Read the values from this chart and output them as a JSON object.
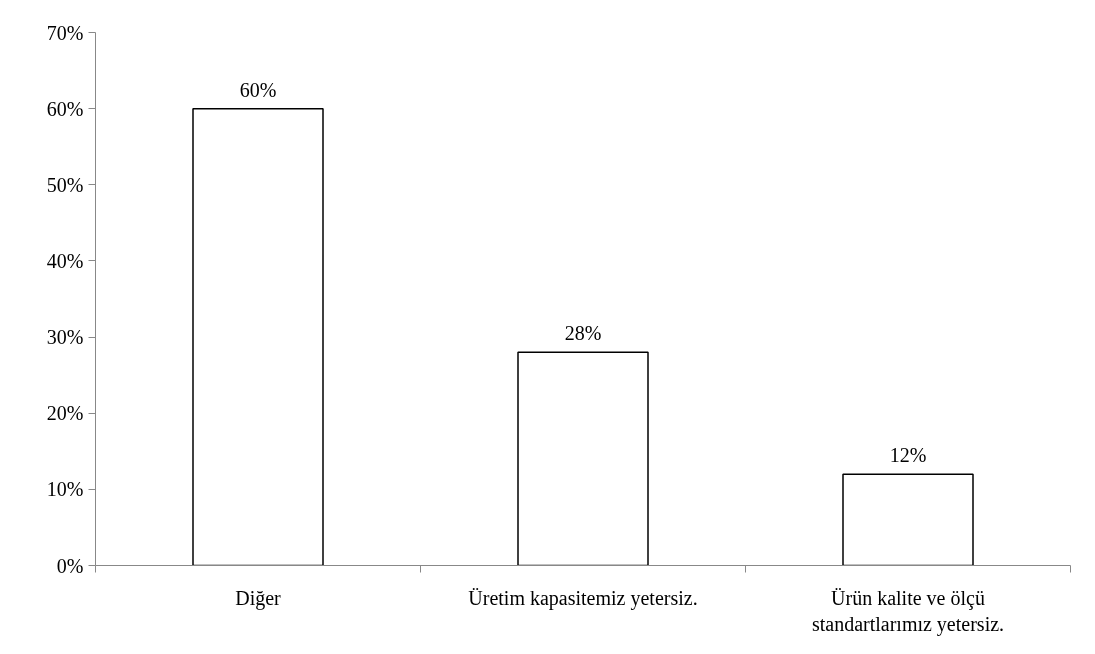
{
  "chart_data": {
    "type": "bar",
    "categories": [
      "Diğer",
      "Üretim kapasitemiz yetersiz.",
      "Ürün kalite ve ölçü\nstandartlarımız yetersiz."
    ],
    "values": [
      60,
      28,
      12
    ],
    "value_labels": [
      "60%",
      "28%",
      "12%"
    ],
    "color": "#ffffff",
    "ylim": [
      0,
      70
    ],
    "yticks": [
      {
        "value": 0,
        "label": "0%"
      },
      {
        "value": 10,
        "label": "10%"
      },
      {
        "value": 20,
        "label": "20%"
      },
      {
        "value": 30,
        "label": "30%"
      },
      {
        "value": 40,
        "label": "40%"
      },
      {
        "value": 50,
        "label": "50%"
      },
      {
        "value": 60,
        "label": "60%"
      },
      {
        "value": 70,
        "label": "70%"
      }
    ],
    "grid": false
  }
}
